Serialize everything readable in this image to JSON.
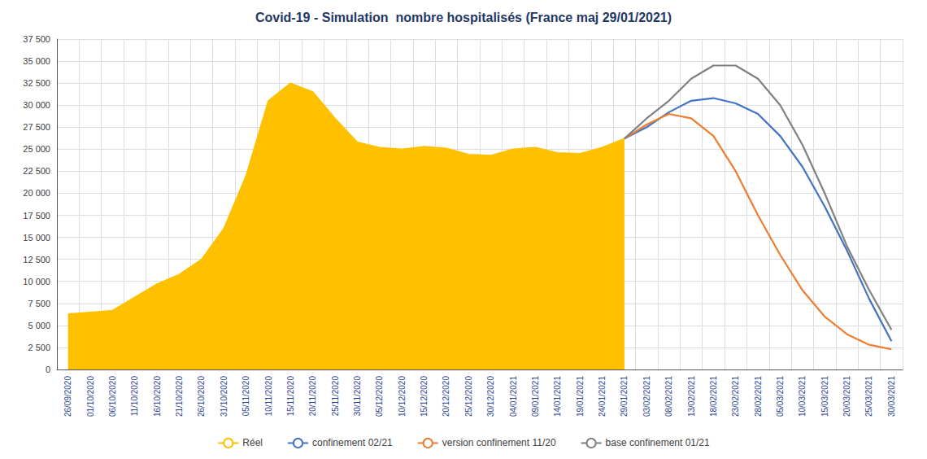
{
  "chart_data": {
    "type": "line",
    "title": "Covid-19 - Simulation  nombre hospitalisés (France maj 29/01/2021)",
    "categories": [
      "26/09/2020",
      "01/10/2020",
      "06/10/2020",
      "11/10/2020",
      "16/10/2020",
      "21/10/2020",
      "26/10/2020",
      "31/10/2020",
      "05/11/2020",
      "10/11/2020",
      "15/11/2020",
      "20/11/2020",
      "25/11/2020",
      "30/11/2020",
      "05/12/2020",
      "10/12/2020",
      "15/12/2020",
      "20/12/2020",
      "25/12/2020",
      "30/12/2020",
      "04/01/2021",
      "09/01/2021",
      "14/01/2021",
      "19/01/2021",
      "24/01/2021",
      "29/01/2021",
      "03/02/2021",
      "08/02/2021",
      "13/02/2021",
      "18/02/2021",
      "23/02/2021",
      "28/02/2021",
      "05/03/2021",
      "10/03/2021",
      "15/03/2021",
      "20/03/2021",
      "25/03/2021",
      "30/03/2021"
    ],
    "series": [
      {
        "name": "Réel",
        "type": "area",
        "color": "#FFC000",
        "values": [
          6300,
          6500,
          6700,
          8200,
          9700,
          10800,
          12500,
          16000,
          22000,
          30500,
          32500,
          31500,
          28500,
          25800,
          25200,
          25000,
          25300,
          25100,
          24400,
          24300,
          25000,
          25200,
          24600,
          24500,
          25200,
          26200,
          null,
          null,
          null,
          null,
          null,
          null,
          null,
          null,
          null,
          null,
          null,
          null
        ]
      },
      {
        "name": "confinement 02/21",
        "type": "line",
        "color": "#4472C4",
        "values": [
          null,
          null,
          null,
          null,
          null,
          null,
          null,
          null,
          null,
          null,
          null,
          null,
          null,
          null,
          null,
          null,
          null,
          null,
          null,
          null,
          null,
          null,
          null,
          null,
          null,
          26200,
          27500,
          29200,
          30500,
          30800,
          30200,
          29000,
          26500,
          23000,
          18500,
          13500,
          8000,
          3200
        ]
      },
      {
        "name": "version confinement 11/20",
        "type": "line",
        "color": "#ED7D31",
        "values": [
          null,
          null,
          null,
          null,
          null,
          null,
          null,
          null,
          null,
          null,
          null,
          null,
          null,
          null,
          null,
          null,
          null,
          null,
          null,
          null,
          null,
          null,
          null,
          null,
          null,
          26200,
          27800,
          29000,
          28500,
          26500,
          22500,
          17500,
          13000,
          9000,
          6000,
          4000,
          2800,
          2300
        ]
      },
      {
        "name": "base confinement 01/21",
        "type": "line",
        "color": "#808080",
        "values": [
          null,
          null,
          null,
          null,
          null,
          null,
          null,
          null,
          null,
          null,
          null,
          null,
          null,
          null,
          null,
          null,
          null,
          null,
          null,
          null,
          null,
          null,
          null,
          null,
          null,
          26200,
          28500,
          30500,
          33000,
          34500,
          34500,
          33000,
          30000,
          25500,
          20000,
          14000,
          9000,
          4500
        ]
      }
    ],
    "ylim": [
      0,
      37500
    ],
    "yticks": [
      0,
      {
        "value": 2500,
        "label": "2 500"
      },
      {
        "value": 5000,
        "label": "5 000"
      },
      {
        "value": 7500,
        "label": "7 500"
      },
      {
        "value": 10000,
        "label": "10 000"
      },
      {
        "value": 12500,
        "label": "12 500"
      },
      {
        "value": 15000,
        "label": "15 000"
      },
      {
        "value": 17500,
        "label": "17 500"
      },
      {
        "value": 20000,
        "label": "20 000"
      },
      {
        "value": 22500,
        "label": "22 500"
      },
      {
        "value": 25000,
        "label": "25 000"
      },
      {
        "value": 27500,
        "label": "27 500"
      },
      {
        "value": 30000,
        "label": "30 000"
      },
      {
        "value": 32500,
        "label": "32 500"
      },
      {
        "value": 35000,
        "label": "35 000"
      },
      {
        "value": 37500,
        "label": "37 500"
      }
    ],
    "grid": true,
    "legend": "bottom"
  }
}
